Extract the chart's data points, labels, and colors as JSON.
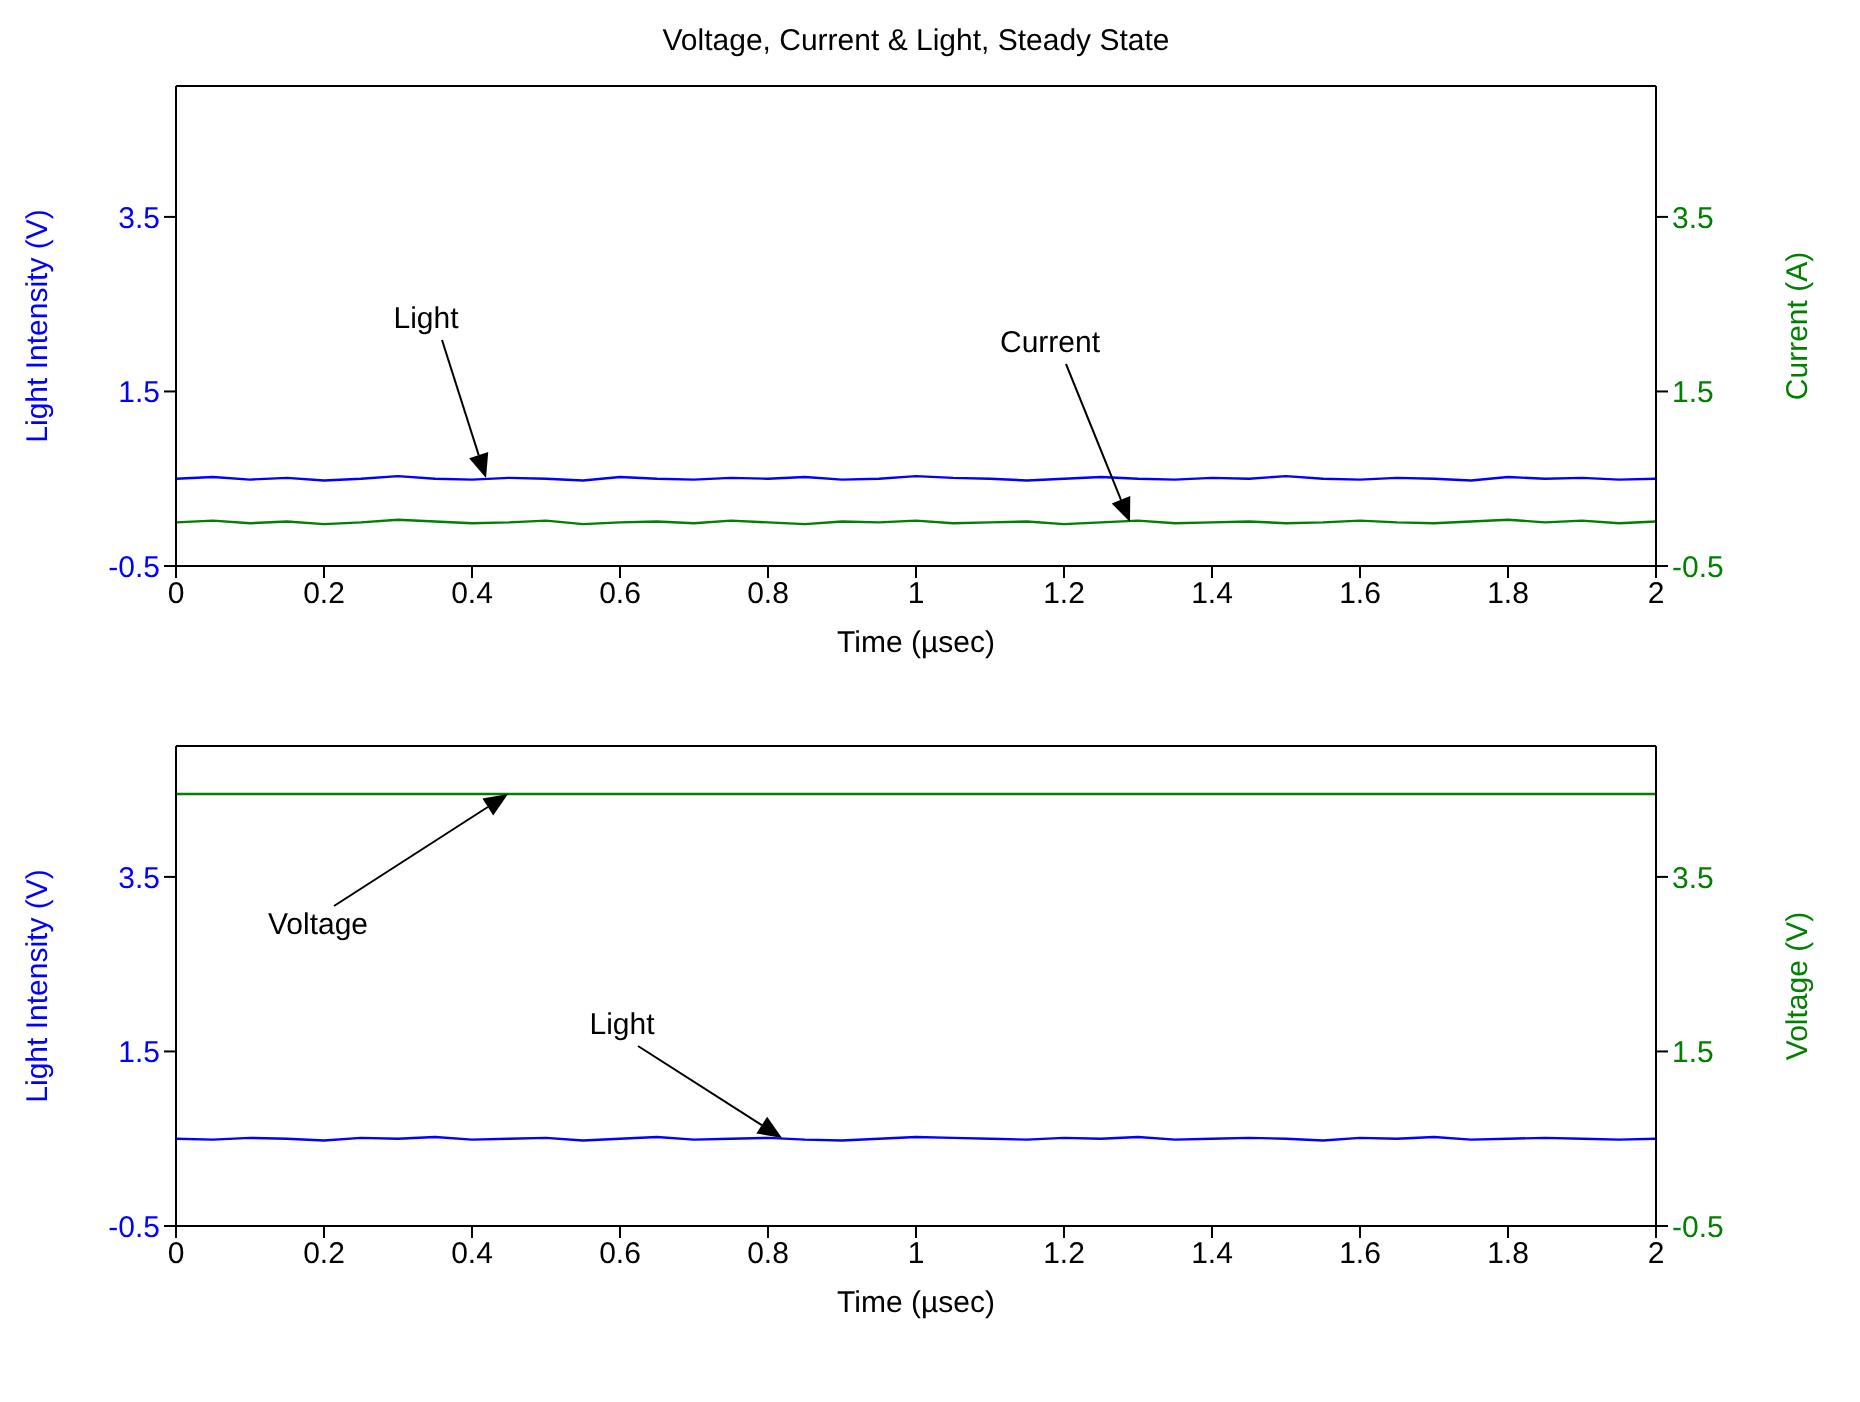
{
  "chart_data": [
    {
      "type": "line",
      "title": "Voltage, Current & Light, Steady State",
      "xlabel": "Time (µsec)",
      "ylabel": "Light Intensity (V)",
      "y2label": "Current (A)",
      "x": [
        0,
        0.05,
        0.1,
        0.15,
        0.2,
        0.25,
        0.3,
        0.35,
        0.4,
        0.45,
        0.5,
        0.55,
        0.6,
        0.65,
        0.7,
        0.75,
        0.8,
        0.85,
        0.9,
        0.95,
        1,
        1.05,
        1.1,
        1.15,
        1.2,
        1.25,
        1.3,
        1.35,
        1.4,
        1.45,
        1.5,
        1.55,
        1.6,
        1.65,
        1.7,
        1.75,
        1.8,
        1.85,
        1.9,
        1.95,
        2
      ],
      "series": [
        {
          "color": "#0000ff",
          "values": [
            0.5,
            0.52,
            0.49,
            0.51,
            0.48,
            0.5,
            0.53,
            0.5,
            0.49,
            0.51,
            0.5,
            0.48,
            0.52,
            0.5,
            0.49,
            0.51,
            0.5,
            0.52,
            0.49,
            0.5,
            0.53,
            0.51,
            0.5,
            0.48,
            0.5,
            0.52,
            0.5,
            0.49,
            0.51,
            0.5,
            0.53,
            0.5,
            0.49,
            0.51,
            0.5,
            0.48,
            0.52,
            0.5,
            0.51,
            0.49,
            0.5
          ]
        },
        {
          "color": "#008000",
          "axis": "y2",
          "values": [
            0.0,
            0.02,
            -0.01,
            0.01,
            -0.02,
            0.0,
            0.03,
            0.01,
            -0.01,
            0.0,
            0.02,
            -0.02,
            0.0,
            0.01,
            -0.01,
            0.02,
            0.0,
            -0.02,
            0.01,
            0.0,
            0.02,
            -0.01,
            0.0,
            0.01,
            -0.02,
            0.0,
            0.02,
            -0.01,
            0.0,
            0.01,
            -0.01,
            0.0,
            0.02,
            0.0,
            -0.01,
            0.01,
            0.03,
            0.0,
            0.02,
            -0.01,
            0.01
          ]
        }
      ],
      "xlim": [
        0,
        2
      ],
      "xticks": [
        0,
        0.2,
        0.4,
        0.6,
        0.8,
        1,
        1.2,
        1.4,
        1.6,
        1.8,
        2
      ],
      "ylim": [
        -0.5,
        5
      ],
      "yticks": [
        -0.5,
        1.5,
        3.5
      ],
      "y2lim": [
        -0.5,
        5
      ],
      "y2ticks": [
        -0.5,
        1.5,
        3.5
      ],
      "annotations": [
        "Light",
        "Current"
      ]
    },
    {
      "type": "line",
      "xlabel": "Time (µsec)",
      "ylabel": "Light Intensity (V)",
      "y2label": "Voltage (V)",
      "x": [
        0,
        0.05,
        0.1,
        0.15,
        0.2,
        0.25,
        0.3,
        0.35,
        0.4,
        0.45,
        0.5,
        0.55,
        0.6,
        0.65,
        0.7,
        0.75,
        0.8,
        0.85,
        0.9,
        0.95,
        1,
        1.05,
        1.1,
        1.15,
        1.2,
        1.25,
        1.3,
        1.35,
        1.4,
        1.45,
        1.5,
        1.55,
        1.6,
        1.65,
        1.7,
        1.75,
        1.8,
        1.85,
        1.9,
        1.95,
        2
      ],
      "series": [
        {
          "color": "#0000ff",
          "values": [
            0.5,
            0.49,
            0.51,
            0.5,
            0.48,
            0.51,
            0.5,
            0.52,
            0.49,
            0.5,
            0.51,
            0.48,
            0.5,
            0.52,
            0.49,
            0.5,
            0.51,
            0.49,
            0.48,
            0.5,
            0.52,
            0.51,
            0.5,
            0.49,
            0.51,
            0.5,
            0.52,
            0.49,
            0.5,
            0.51,
            0.5,
            0.48,
            0.51,
            0.5,
            0.52,
            0.49,
            0.5,
            0.51,
            0.5,
            0.49,
            0.5
          ]
        },
        {
          "color": "#008000",
          "axis": "y2",
          "x": [
            0,
            2
          ],
          "values": [
            4.45,
            4.45
          ]
        }
      ],
      "xlim": [
        0,
        2
      ],
      "xticks": [
        0,
        0.2,
        0.4,
        0.6,
        0.8,
        1,
        1.2,
        1.4,
        1.6,
        1.8,
        2
      ],
      "ylim": [
        -0.5,
        5
      ],
      "yticks": [
        -0.5,
        1.5,
        3.5
      ],
      "y2lim": [
        -0.5,
        5
      ],
      "y2ticks": [
        -0.5,
        1.5,
        3.5
      ],
      "annotations": [
        "Voltage",
        "Light"
      ]
    }
  ]
}
